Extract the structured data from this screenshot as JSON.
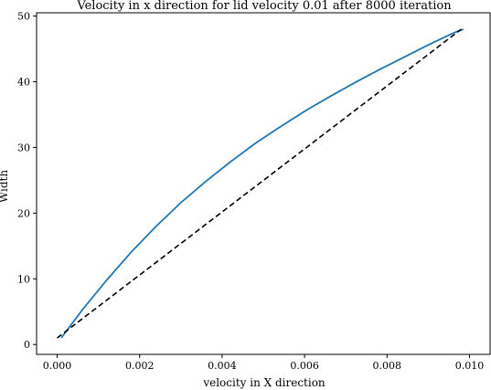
{
  "chart_data": {
    "type": "line",
    "title": "Velocity in x direction for lid velocity 0.01 after 8000 iteration",
    "xlabel": "velocity in X direction",
    "ylabel": "Width",
    "xlim": [
      -0.0005,
      0.0105
    ],
    "ylim": [
      -1.5,
      50.5
    ],
    "xticks": [
      0.0,
      0.002,
      0.004,
      0.006,
      0.008,
      0.01
    ],
    "xtick_labels": [
      "0.000",
      "0.002",
      "0.004",
      "0.006",
      "0.008",
      "0.010"
    ],
    "yticks": [
      0,
      10,
      20,
      30,
      40,
      50
    ],
    "ytick_labels": [
      "0",
      "10",
      "20",
      "30",
      "40",
      "50"
    ],
    "grid": false,
    "series": [
      {
        "style": "solid",
        "color": "#1f77b4",
        "x": [
          0.0001,
          0.0006,
          0.0012,
          0.0018,
          0.0024,
          0.003,
          0.0036,
          0.0042,
          0.0048,
          0.0054,
          0.006,
          0.0066,
          0.0072,
          0.0078,
          0.0084,
          0.009,
          0.0096,
          0.00985
        ],
        "y": [
          1.0,
          5.2,
          9.8,
          14.1,
          18.0,
          21.6,
          24.8,
          27.8,
          30.6,
          33.1,
          35.5,
          37.7,
          39.8,
          41.8,
          43.7,
          45.6,
          47.4,
          48.0
        ]
      },
      {
        "style": "dashed",
        "color": "#000000",
        "x": [
          0.0,
          0.0098
        ],
        "y": [
          1.0,
          48.0
        ]
      }
    ]
  }
}
